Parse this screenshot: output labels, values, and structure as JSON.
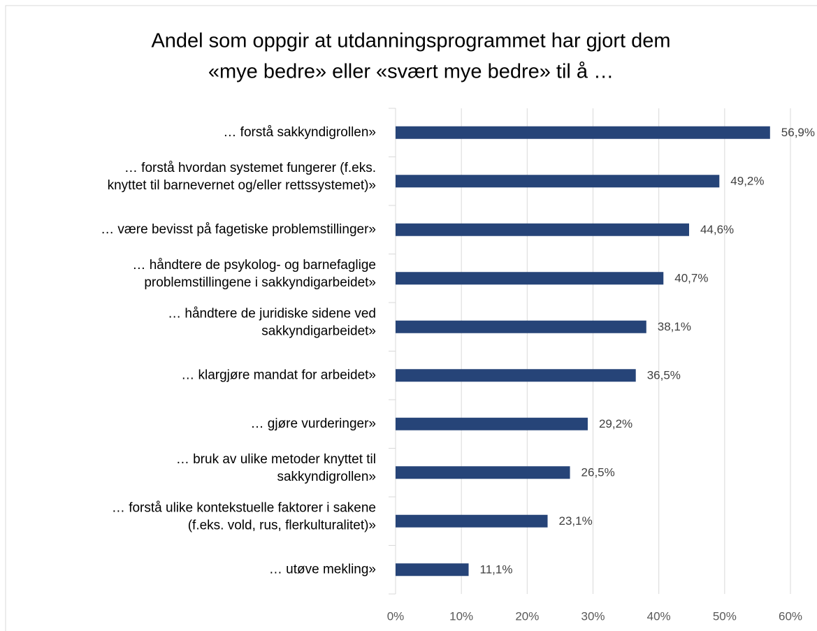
{
  "chart_data": {
    "type": "bar",
    "orientation": "horizontal",
    "title": [
      "Andel som oppgir at utdanningsprogrammet har gjort dem",
      "«mye bedre» eller «svært mye bedre» til å …"
    ],
    "categories": [
      [
        "… forstå sakkyndigrollen»"
      ],
      [
        "… forstå hvordan systemet fungerer (f.eks.",
        "knyttet til barnevernet og/eller rettssystemet)»"
      ],
      [
        "… være bevisst på fagetiske problemstillinger»"
      ],
      [
        "… håndtere de psykolog- og barnefaglige",
        "problemstillingene i sakkyndigarbeidet»"
      ],
      [
        "… håndtere de juridiske sidene ved",
        "sakkyndigarbeidet»"
      ],
      [
        "… klargjøre mandat for arbeidet»"
      ],
      [
        "… gjøre vurderinger»"
      ],
      [
        "… bruk av ulike metoder knyttet til",
        "sakkyndigrollen»"
      ],
      [
        "… forstå ulike kontekstuelle faktorer i sakene",
        "(f.eks. vold, rus, flerkulturalitet)»"
      ],
      [
        "… utøve mekling»"
      ]
    ],
    "values": [
      56.9,
      49.2,
      44.6,
      40.7,
      38.1,
      36.5,
      29.2,
      26.5,
      23.1,
      11.1
    ],
    "value_labels": [
      "56,9%",
      "49,2%",
      "44,6%",
      "40,7%",
      "38,1%",
      "36,5%",
      "29,2%",
      "26,5%",
      "23,1%",
      "11,1%"
    ],
    "color": "#264478",
    "xlim": [
      0,
      60
    ],
    "xticks": [
      {
        "value": 0,
        "label": "0%"
      },
      {
        "value": 10,
        "label": "10%"
      },
      {
        "value": 20,
        "label": "20%"
      },
      {
        "value": 30,
        "label": "30%"
      },
      {
        "value": 40,
        "label": "40%"
      },
      {
        "value": 50,
        "label": "50%"
      },
      {
        "value": 60,
        "label": "60%"
      }
    ],
    "grid": true
  }
}
